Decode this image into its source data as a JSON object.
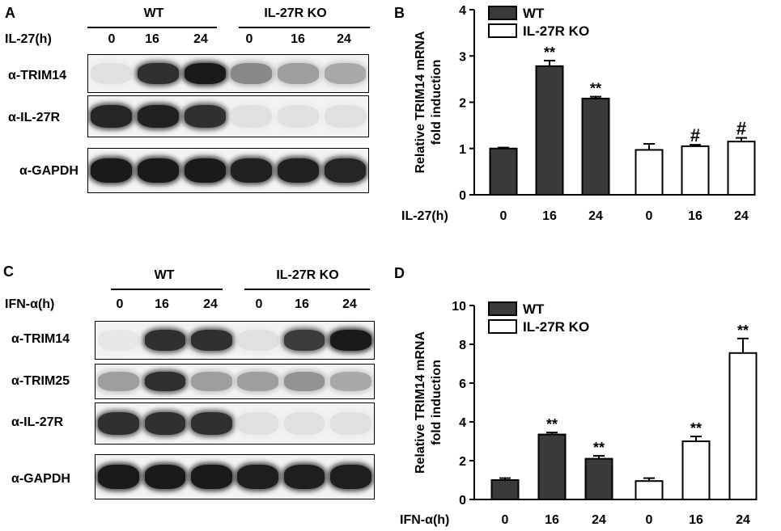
{
  "panels": {
    "A": {
      "label": "A",
      "groups": [
        "WT",
        "IL-27R KO"
      ],
      "treatment_label": "IL-27(h)",
      "timepoints": [
        "0",
        "16",
        "24",
        "0",
        "16",
        "24"
      ],
      "blots": [
        {
          "label": "α-TRIM14",
          "intensity": [
            0.05,
            0.85,
            0.95,
            0.45,
            0.35,
            0.3
          ]
        },
        {
          "label": "α-IL-27R",
          "intensity": [
            0.9,
            0.92,
            0.85,
            0.05,
            0.05,
            0.05
          ]
        },
        {
          "label": "α-GAPDH",
          "intensity": [
            0.95,
            0.95,
            0.95,
            0.92,
            0.92,
            0.9
          ]
        }
      ]
    },
    "C": {
      "label": "C",
      "groups": [
        "WT",
        "IL-27R KO"
      ],
      "treatment_label": "IFN-α(h)",
      "timepoints": [
        "0",
        "16",
        "24",
        "0",
        "16",
        "24"
      ],
      "blots": [
        {
          "label": "α-TRIM14",
          "intensity": [
            0.02,
            0.85,
            0.85,
            0.05,
            0.8,
            0.95
          ]
        },
        {
          "label": "α-TRIM25",
          "intensity": [
            0.35,
            0.85,
            0.35,
            0.35,
            0.4,
            0.3
          ]
        },
        {
          "label": "α-IL-27R",
          "intensity": [
            0.85,
            0.85,
            0.85,
            0.05,
            0.05,
            0.05
          ]
        },
        {
          "label": "α-GAPDH",
          "intensity": [
            0.95,
            0.95,
            0.95,
            0.93,
            0.93,
            0.93
          ]
        }
      ]
    }
  },
  "chart_data": [
    {
      "panel": "B",
      "type": "bar",
      "title": "",
      "ylabel": [
        "Relative TRIM14 mRNA",
        "fold induction"
      ],
      "xlabel": "IL-27(h)",
      "ylim": [
        0,
        4
      ],
      "yticks": [
        "0",
        "1",
        "2",
        "3",
        "4"
      ],
      "categories": [
        "0",
        "16",
        "24"
      ],
      "legend_position": "top-left",
      "series": [
        {
          "name": "WT",
          "color": "#3a3a3a",
          "values": [
            1.0,
            2.78,
            2.08
          ],
          "errors": [
            0.02,
            0.12,
            0.04
          ],
          "annotations": [
            "",
            "**",
            "**"
          ]
        },
        {
          "name": "IL-27R KO",
          "color": "#ffffff",
          "values": [
            0.97,
            1.05,
            1.15
          ],
          "errors": [
            0.13,
            0.03,
            0.08
          ],
          "annotations": [
            "",
            "#",
            "#"
          ]
        }
      ]
    },
    {
      "panel": "D",
      "type": "bar",
      "title": "",
      "ylabel": [
        "Relative TRIM14 mRNA",
        "fold induction"
      ],
      "xlabel": "IFN-α(h)",
      "ylim": [
        0,
        10
      ],
      "yticks": [
        "0",
        "2",
        "4",
        "6",
        "8",
        "10"
      ],
      "categories": [
        "0",
        "16",
        "24"
      ],
      "legend_position": "top-left",
      "series": [
        {
          "name": "WT",
          "color": "#3a3a3a",
          "values": [
            1.0,
            3.35,
            2.1
          ],
          "errors": [
            0.1,
            0.1,
            0.15
          ],
          "annotations": [
            "",
            "**",
            "**"
          ]
        },
        {
          "name": "IL-27R KO",
          "color": "#ffffff",
          "values": [
            0.95,
            3.0,
            7.55
          ],
          "errors": [
            0.15,
            0.25,
            0.75
          ],
          "annotations": [
            "",
            "**",
            "**"
          ]
        }
      ]
    }
  ]
}
